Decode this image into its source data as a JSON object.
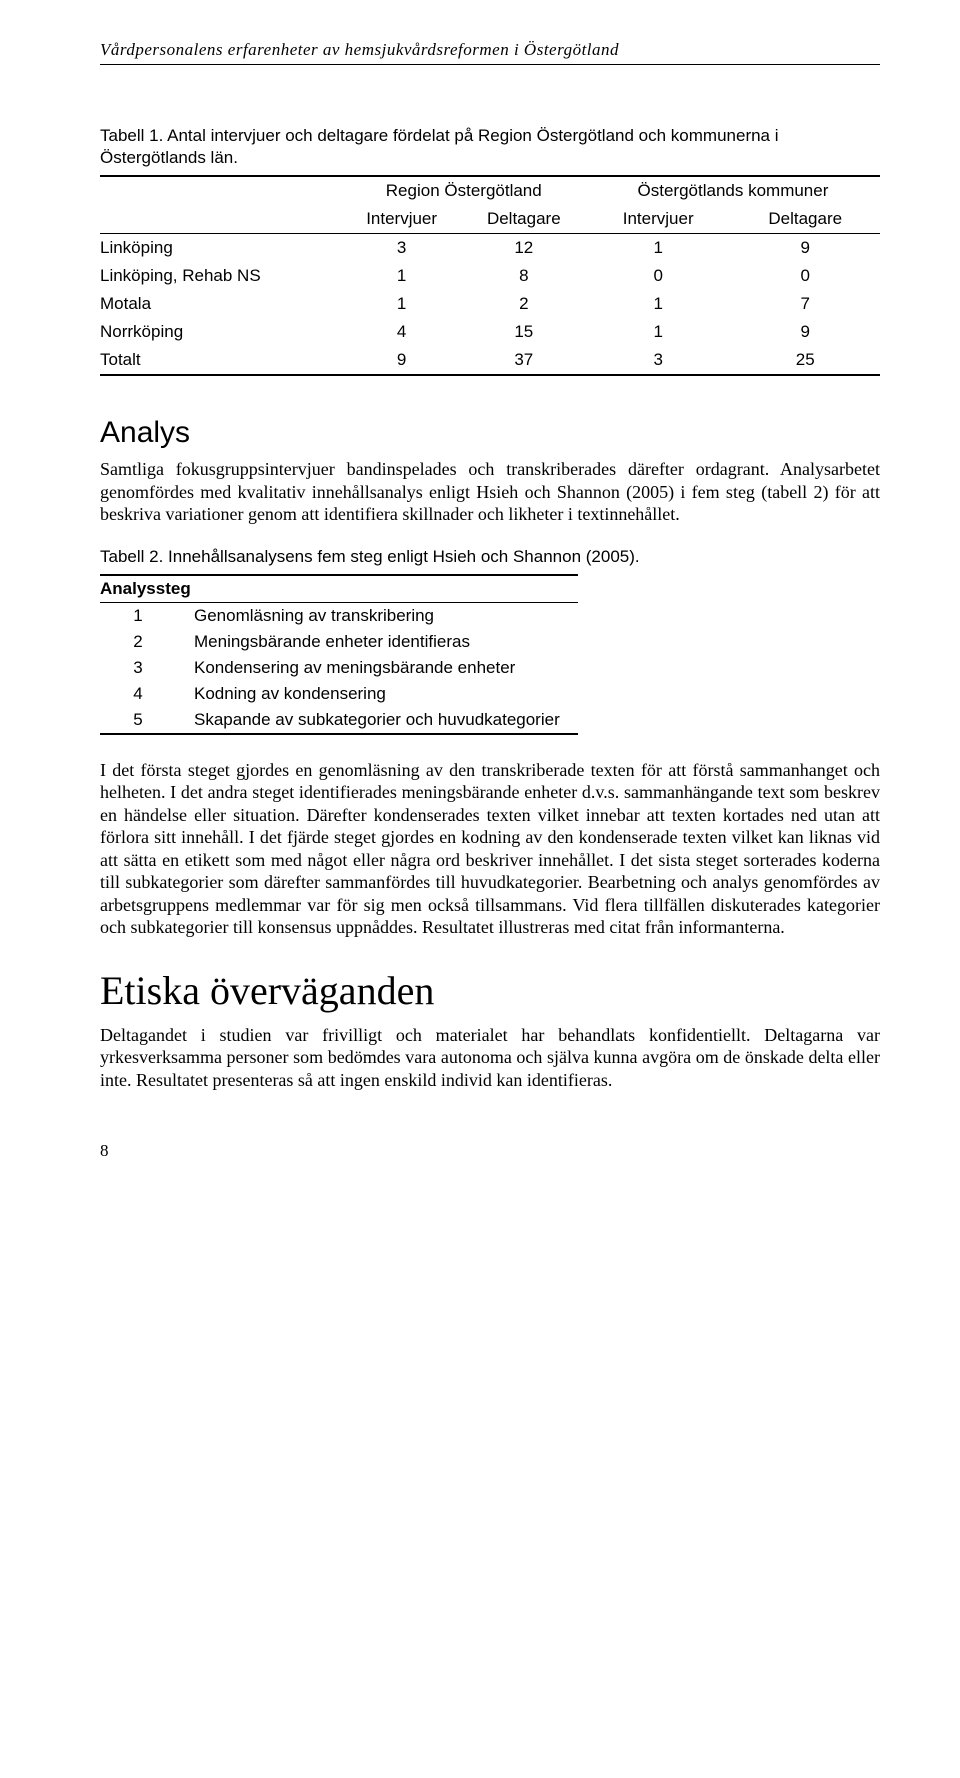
{
  "running_header": "Vårdpersonalens erfarenheter av hemsjukvårdsreformen i Östergötland",
  "table1": {
    "caption": "Tabell 1. Antal intervjuer och deltagare fördelat på Region Östergötland och kommunerna i Östergötlands län.",
    "group_headers": [
      "Region Östergötland",
      "Östergötlands kommuner"
    ],
    "col_headers": [
      "Intervjuer",
      "Deltagare",
      "Intervjuer",
      "Deltagare"
    ],
    "rows": [
      {
        "label": "Linköping",
        "vals": [
          "3",
          "12",
          "1",
          "9"
        ]
      },
      {
        "label": "Linköping, Rehab NS",
        "vals": [
          "1",
          "8",
          "0",
          "0"
        ]
      },
      {
        "label": "Motala",
        "vals": [
          "1",
          "2",
          "1",
          "7"
        ]
      },
      {
        "label": "Norrköping",
        "vals": [
          "4",
          "15",
          "1",
          "9"
        ]
      },
      {
        "label": "Totalt",
        "vals": [
          "9",
          "37",
          "3",
          "25"
        ]
      }
    ]
  },
  "analys": {
    "heading": "Analys",
    "p1": "Samtliga fokusgruppsintervjuer bandinspelades och transkriberades därefter ordagrant. Analysarbetet genomfördes med kvalitativ innehålls­analys enligt Hsieh och Shannon (2005) i fem steg (tabell 2) för att beskriva variationer genom att identifiera skillnader och likheter i textinnehållet."
  },
  "table2": {
    "caption": "Tabell 2. Innehållsanalysens fem steg enligt Hsieh och Shannon (2005).",
    "header": "Analyssteg",
    "rows": [
      {
        "n": "1",
        "text": "Genomläsning av transkribering"
      },
      {
        "n": "2",
        "text": "Meningsbärande enheter identifieras"
      },
      {
        "n": "3",
        "text": "Kondensering av meningsbärande enheter"
      },
      {
        "n": "4",
        "text": "Kodning av kondensering"
      },
      {
        "n": "5",
        "text": "Skapande av subkategorier och huvudkategorier"
      }
    ]
  },
  "p2": "I det första steget gjordes en genomläsning av den transkriberade texten för att förstå sammanhanget och helheten. I det andra steget identifierades meningsbärande enheter d.v.s. sammanhängande text som beskrev en händelse eller situation. Därefter kondenserades texten vilket innebar att texten kortades ned utan att förlora sitt innehåll. I det fjärde steget gjordes en kodning av den kondenserade texten vilket kan liknas vid att sätta en etikett som med något eller några ord beskriver innehållet. I det sista steget sorterades koderna till subkategorier som därefter sammanfördes till huvudkategorier. Bearbetning och analys genomfördes av arbetsgruppens medlemmar var för sig men också tillsammans. Vid flera tillfällen diskuterades kategorier och subkategorier till konsensus uppnåddes. Resultatet illustreras med citat från informanterna.",
  "etiska": {
    "heading": "Etiska överväganden",
    "p1": "Deltagandet i studien var frivilligt och materialet har behandlats konfidentiellt. Deltagarna var yrkesverksamma personer som bedömdes vara autonoma och själva kunna avgöra om de önskade delta eller inte. Resultatet presenteras så att ingen enskild individ kan identifieras."
  },
  "page_number": "8"
}
